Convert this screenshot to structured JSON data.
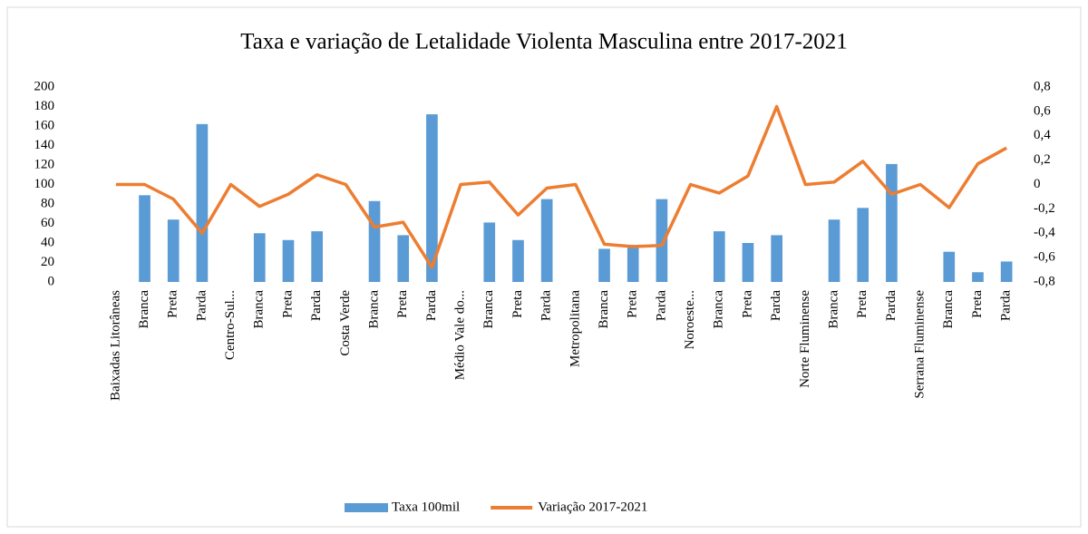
{
  "chart_data": {
    "type": "bar",
    "title": "Taxa e variação de Letalidade Violenta Masculina entre 2017-2021",
    "categories": [
      "Baixadas Litorâneas",
      "Branca",
      "Preta",
      "Parda",
      "Centro-Sul...",
      "Branca",
      "Preta",
      "Parda",
      "Costa Verde",
      "Branca",
      "Preta",
      "Parda",
      "Médio Vale do...",
      "Branca",
      "Preta",
      "Parda",
      "Metropolitana",
      "Branca",
      "Preta",
      "Parda",
      "Noroeste...",
      "Branca",
      "Preta",
      "Parda",
      "Norte Fluminense",
      "Branca",
      "Preta",
      "Parda",
      "Serrana Fluminense",
      "Branca",
      "Preta",
      "Parda"
    ],
    "series": [
      {
        "name": "Taxa 100mil",
        "type": "bar",
        "color": "#5b9bd5",
        "values": [
          null,
          89,
          64,
          162,
          null,
          50,
          43,
          52,
          null,
          83,
          48,
          172,
          null,
          61,
          43,
          85,
          null,
          34,
          38,
          85,
          null,
          52,
          40,
          48,
          null,
          64,
          76,
          121,
          null,
          31,
          10,
          21
        ]
      },
      {
        "name": "Variação 2017-2021",
        "type": "line",
        "axis": "y2",
        "color": "#ed7d31",
        "values": [
          0,
          0,
          -0.12,
          -0.4,
          0,
          -0.18,
          -0.08,
          0.08,
          0,
          -0.35,
          -0.31,
          -0.68,
          0,
          0.02,
          -0.25,
          -0.03,
          0,
          -0.49,
          -0.51,
          -0.5,
          0,
          -0.07,
          0.07,
          0.64,
          0,
          0.02,
          0.19,
          -0.08,
          0,
          -0.19,
          0.17,
          0.3
        ]
      }
    ],
    "ylim": [
      0,
      200
    ],
    "yticks": [
      0,
      20,
      40,
      60,
      80,
      100,
      120,
      140,
      160,
      180,
      200
    ],
    "y2lim": [
      -0.8,
      0.8
    ],
    "y2ticks": [
      {
        "value": -0.8,
        "label": "-0,8"
      },
      {
        "value": -0.6,
        "label": "-0,6"
      },
      {
        "value": -0.4,
        "label": "-0,4"
      },
      {
        "value": -0.2,
        "label": "-0,2"
      },
      0,
      {
        "value": 0.2,
        "label": "0,2"
      },
      {
        "value": 0.4,
        "label": "0,4"
      },
      {
        "value": 0.6,
        "label": "0,6"
      },
      {
        "value": 0.8,
        "label": "0,8"
      }
    ],
    "legend": "bottom"
  }
}
